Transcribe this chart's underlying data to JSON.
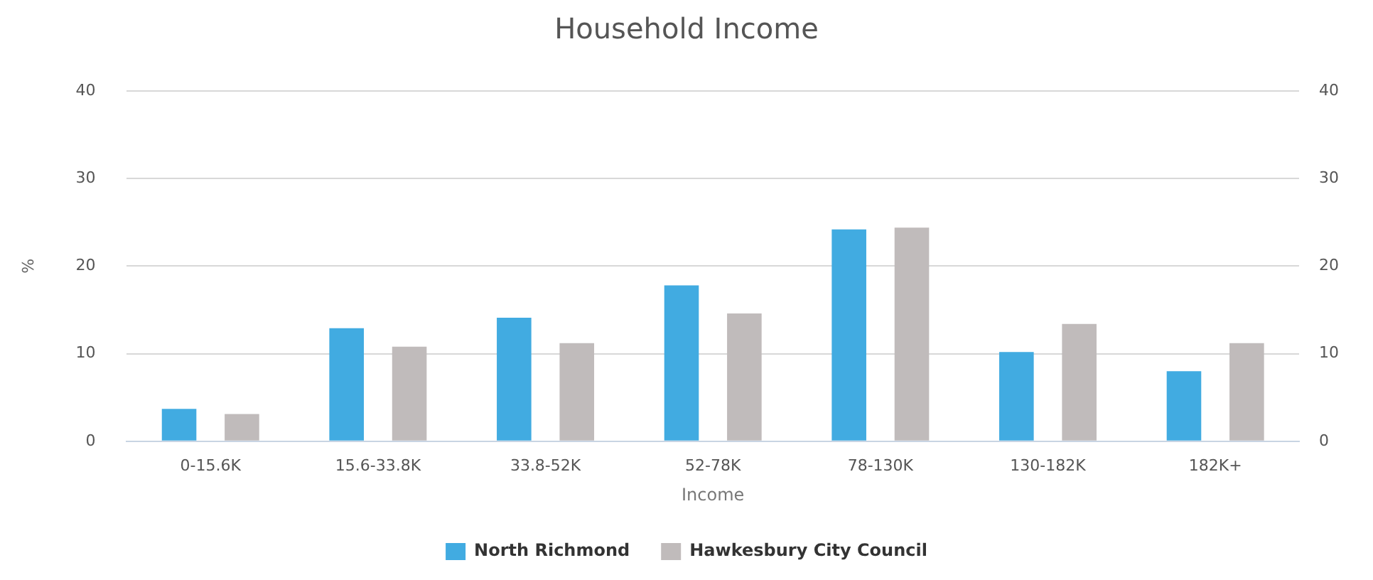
{
  "chart_data": {
    "type": "bar",
    "title": "Household Income",
    "xlabel": "Income",
    "ylabel": "%",
    "categories": [
      "0-15.6K",
      "15.6-33.8K",
      "33.8-52K",
      "52-78K",
      "78-130K",
      "130-182K",
      "182K+"
    ],
    "series": [
      {
        "name": "North Richmond",
        "color": "#41abe1",
        "values": [
          3.7,
          12.9,
          14.1,
          17.8,
          24.2,
          10.2,
          8.0
        ]
      },
      {
        "name": "Hawkesbury City Council",
        "color": "#c0bbbb",
        "values": [
          3.1,
          10.8,
          11.2,
          14.6,
          24.4,
          13.4,
          11.2
        ]
      }
    ],
    "ylim": [
      0,
      40
    ],
    "yticks": [
      0,
      10,
      20,
      30,
      40
    ],
    "y2lim": [
      0,
      40
    ],
    "y2ticks": [
      0,
      10,
      20,
      30,
      40
    ],
    "grid": "y",
    "legend": "bottom"
  }
}
